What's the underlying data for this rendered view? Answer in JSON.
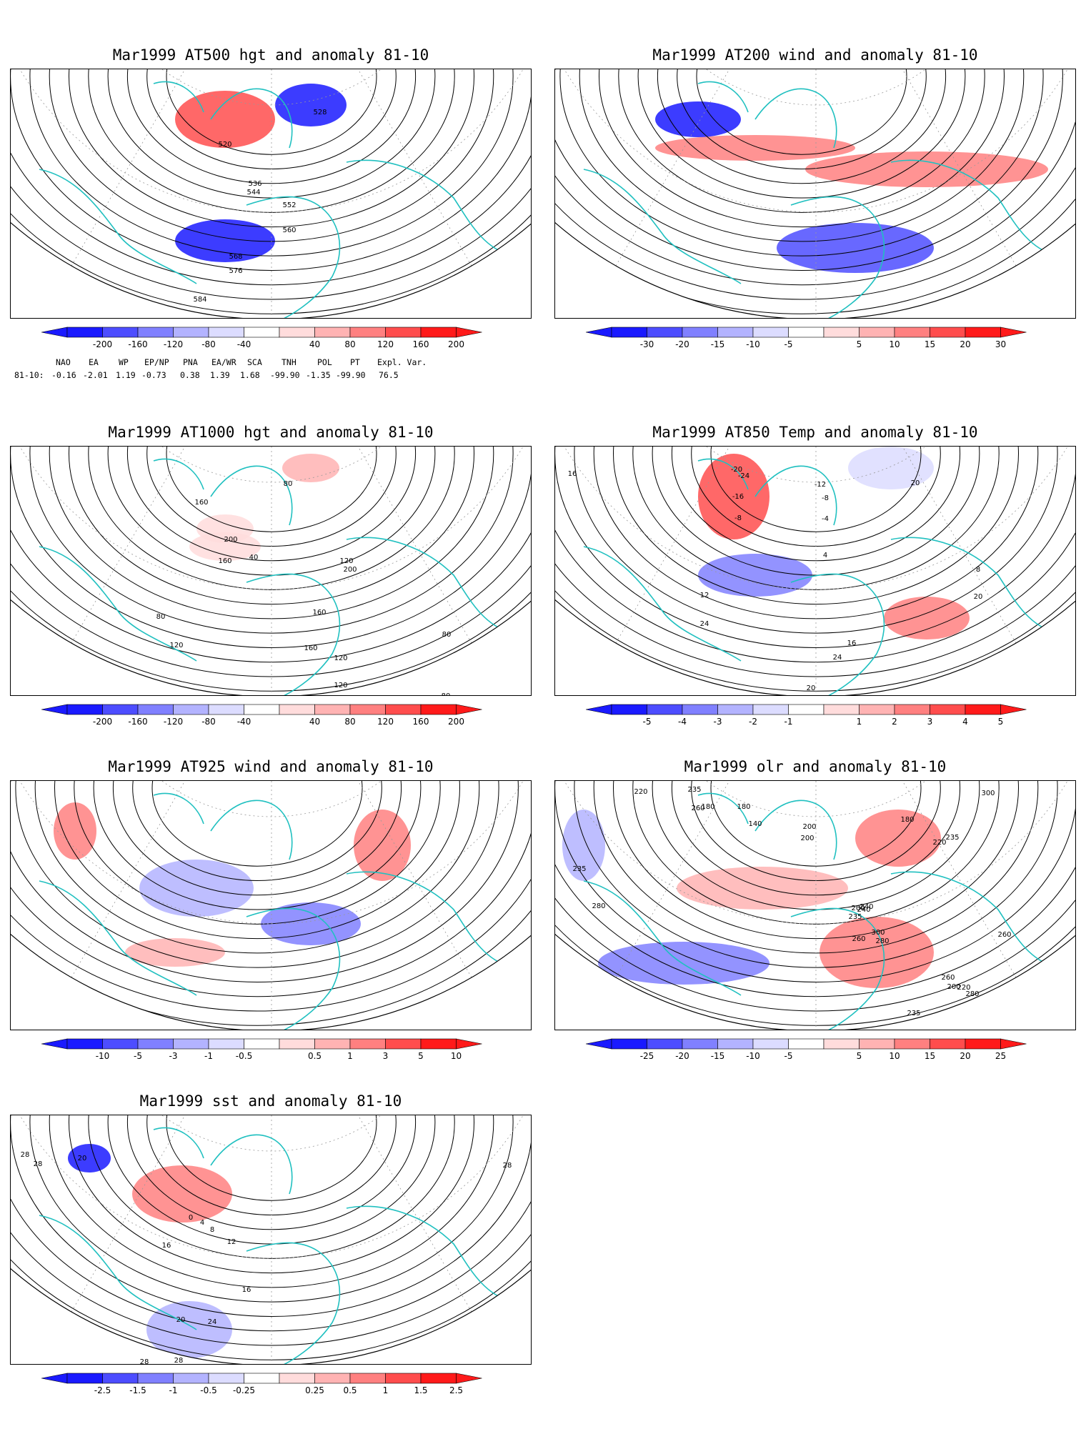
{
  "colors": {
    "ocean_line": "#20c0c0",
    "contour": "#000000",
    "grid": "#999999",
    "neg": [
      "#1a1aff",
      "#4d4dff",
      "#8080ff",
      "#b3b3ff",
      "#dcdcff"
    ],
    "pos": [
      "#ffdcdc",
      "#ffb3b3",
      "#ff8080",
      "#ff4d4d",
      "#ff1a1a"
    ]
  },
  "panels": [
    {
      "id": "at500",
      "title": "Mar1999 AT500 hgt and anomaly 81-10",
      "contour_labels": [
        "528",
        "520",
        "536",
        "544",
        "552",
        "560",
        "568",
        "576",
        "584"
      ],
      "colorbar_ticks": [
        "-200",
        "-160",
        "-120",
        "-80",
        "-40",
        "40",
        "80",
        "120",
        "160",
        "200"
      ]
    },
    {
      "id": "at200",
      "title": "Mar1999 AT200 wind and anomaly 81-10",
      "contour_labels": [],
      "colorbar_ticks": [
        "-30",
        "-20",
        "-15",
        "-10",
        "-5",
        "5",
        "10",
        "15",
        "20",
        "30"
      ]
    },
    {
      "id": "at1000",
      "title": "Mar1999 AT1000 hgt and anomaly 81-10",
      "contour_labels": [
        "160",
        "200",
        "80",
        "40",
        "160",
        "120",
        "200",
        "160",
        "80",
        "120",
        "160",
        "120",
        "120",
        "120",
        "80",
        "80",
        "120",
        "80"
      ],
      "colorbar_ticks": [
        "-200",
        "-160",
        "-120",
        "-80",
        "-40",
        "40",
        "80",
        "120",
        "160",
        "200"
      ]
    },
    {
      "id": "at850",
      "title": "Mar1999 AT850 Temp and anomaly 81-10",
      "contour_labels": [
        "16",
        "-20",
        "-24",
        "-16",
        "-8",
        "-12",
        "-8",
        "-4",
        "4",
        "20",
        "20",
        "8",
        "12",
        "24",
        "16",
        "24",
        "20"
      ],
      "colorbar_ticks": [
        "-5",
        "-4",
        "-3",
        "-2",
        "-1",
        "1",
        "2",
        "3",
        "4",
        "5"
      ]
    },
    {
      "id": "at925",
      "title": "Mar1999 AT925 wind and anomaly 81-10",
      "contour_labels": [],
      "colorbar_ticks": [
        "-10",
        "-5",
        "-3",
        "-1",
        "-0.5",
        "0.5",
        "1",
        "3",
        "5",
        "10"
      ]
    },
    {
      "id": "olr",
      "title": "Mar1999 olr and anomaly 81-10",
      "contour_labels": [
        "260",
        "235",
        "220",
        "180",
        "180",
        "140",
        "200",
        "200",
        "180",
        "300",
        "220",
        "235",
        "235",
        "280",
        "200",
        "240",
        "235",
        "240",
        "260",
        "280",
        "300",
        "260",
        "235",
        "280",
        "220",
        "200",
        "260"
      ],
      "colorbar_ticks": [
        "-25",
        "-20",
        "-15",
        "-10",
        "-5",
        "5",
        "10",
        "15",
        "20",
        "25"
      ]
    },
    {
      "id": "sst",
      "title": "Mar1999 sst and anomaly 81-10",
      "contour_labels": [
        "28",
        "28",
        "20",
        "0",
        "4",
        "8",
        "12",
        "16",
        "16",
        "20",
        "24",
        "28",
        "28",
        "28"
      ],
      "colorbar_ticks": [
        "-2.5",
        "-1.5",
        "-1",
        "-0.5",
        "-0.25",
        "0.25",
        "0.5",
        "1",
        "1.5",
        "2.5"
      ]
    }
  ],
  "teleconnection": {
    "headers": [
      "NAO",
      "EA",
      "WP",
      "EP/NP",
      "PNA",
      "EA/WR",
      "SCA",
      "TNH",
      "POL",
      "PT",
      "Expl. Var."
    ],
    "row_label": "81-10:",
    "values": [
      "-0.16",
      "-2.01",
      "1.19",
      "-0.73",
      "0.38",
      "1.39",
      "1.68",
      "-99.90",
      "-1.35",
      "-99.90",
      "76.5"
    ]
  }
}
